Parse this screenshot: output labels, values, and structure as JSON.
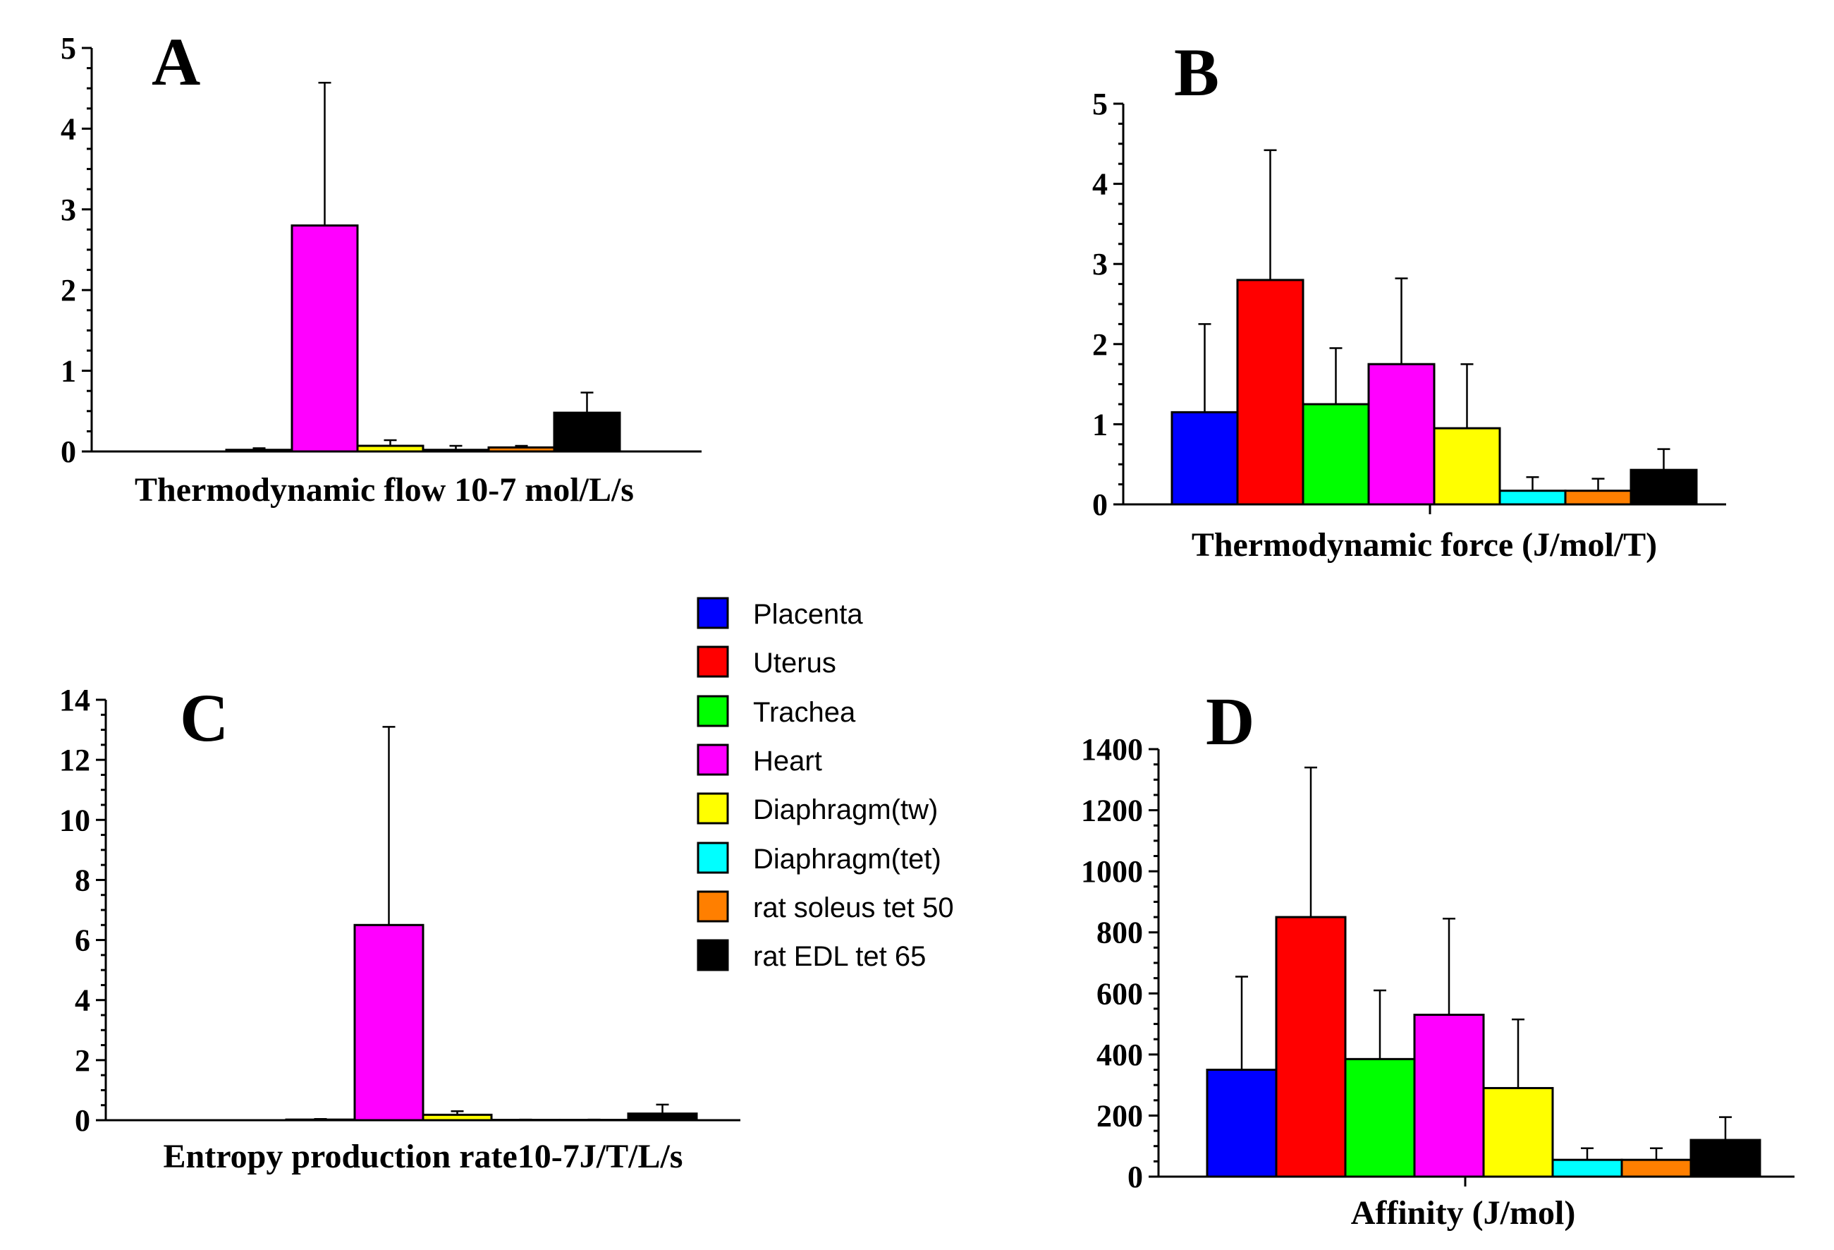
{
  "colors": {
    "Placenta": "#0000ff",
    "Uterus": "#ff0000",
    "Trachea": "#00ff00",
    "Heart": "#ff00ff",
    "Diaphragm(tw)": "#ffff00",
    "Diaphragm(tet)": "#00ffff",
    "rat soleus tet 50": "#ff7f00",
    "rat EDL tet 65": "#000000"
  },
  "legend": {
    "items": [
      "Placenta",
      "Uterus",
      "Trachea",
      "Heart",
      "Diaphragm(tw)",
      "Diaphragm(tet)",
      "rat soleus tet 50",
      "rat EDL tet 65"
    ],
    "placement": "center"
  },
  "chart_data": [
    {
      "id": "A",
      "type": "bar",
      "panel_label": "A",
      "xlabel": "Thermodynamic flow 10-7 mol/L/s",
      "ylim": [
        0,
        5
      ],
      "yticks": [
        0,
        1,
        2,
        3,
        4,
        5
      ],
      "categories": [
        "Placenta",
        "Uterus",
        "Trachea",
        "Heart",
        "Diaphragm(tw)",
        "Diaphragm(tet)",
        "rat soleus tet 50",
        "rat EDL tet 65"
      ],
      "values": [
        0,
        0,
        0.02,
        2.8,
        0.07,
        0.02,
        0.05,
        0.48
      ],
      "errors": [
        0,
        0,
        0.02,
        1.77,
        0.07,
        0.05,
        0.02,
        0.25
      ]
    },
    {
      "id": "B",
      "type": "bar",
      "panel_label": "B",
      "xlabel": "Thermodynamic force  (J/mol/T)",
      "ylim": [
        0,
        5
      ],
      "yticks": [
        0,
        1,
        2,
        3,
        4,
        5
      ],
      "categories": [
        "Placenta",
        "Uterus",
        "Trachea",
        "Heart",
        "Diaphragm(tw)",
        "Diaphragm(tet)",
        "rat soleus tet 50",
        "rat EDL tet 65"
      ],
      "values": [
        1.15,
        2.8,
        1.25,
        1.75,
        0.95,
        0.17,
        0.17,
        0.43
      ],
      "errors": [
        1.1,
        1.62,
        0.7,
        1.07,
        0.8,
        0.17,
        0.15,
        0.26
      ]
    },
    {
      "id": "C",
      "type": "bar",
      "panel_label": "C",
      "xlabel": "Entropy production rate10-7J/T/L/s",
      "ylim": [
        0,
        14
      ],
      "yticks": [
        0,
        2,
        4,
        6,
        8,
        10,
        12,
        14
      ],
      "categories": [
        "Placenta",
        "Uterus",
        "Trachea",
        "Heart",
        "Diaphragm(tw)",
        "Diaphragm(tet)",
        "rat soleus tet 50",
        "rat EDL tet 65"
      ],
      "values": [
        0,
        0,
        0.02,
        6.5,
        0.18,
        0.01,
        0.01,
        0.22
      ],
      "errors": [
        0,
        0,
        0.02,
        6.6,
        0.12,
        0.01,
        0.01,
        0.3
      ]
    },
    {
      "id": "D",
      "type": "bar",
      "panel_label": "D",
      "xlabel": "Affinity (J/mol)",
      "ylim": [
        0,
        1400
      ],
      "yticks": [
        0,
        200,
        400,
        600,
        800,
        1000,
        1200,
        1400
      ],
      "categories": [
        "Placenta",
        "Uterus",
        "Trachea",
        "Heart",
        "Diaphragm(tw)",
        "Diaphragm(tet)",
        "rat soleus tet 50",
        "rat EDL tet 65"
      ],
      "values": [
        350,
        850,
        385,
        530,
        290,
        55,
        55,
        120
      ],
      "errors": [
        305,
        490,
        225,
        315,
        225,
        38,
        38,
        75
      ]
    }
  ]
}
